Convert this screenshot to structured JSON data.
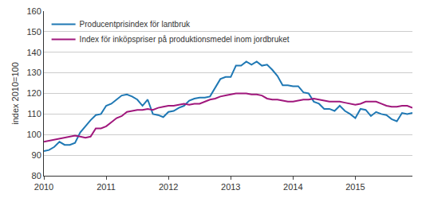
{
  "chart_data": {
    "type": "line",
    "y_label": "index 2010=100",
    "categories": [
      "2010",
      null,
      null,
      null,
      null,
      null,
      null,
      null,
      null,
      null,
      null,
      null,
      "2011",
      null,
      null,
      null,
      null,
      null,
      null,
      null,
      null,
      null,
      null,
      null,
      "2012",
      null,
      null,
      null,
      null,
      null,
      null,
      null,
      null,
      null,
      null,
      null,
      "2013",
      null,
      null,
      null,
      null,
      null,
      null,
      null,
      null,
      null,
      null,
      null,
      "2014",
      null,
      null,
      null,
      null,
      null,
      null,
      null,
      null,
      null,
      null,
      null,
      "2015",
      null,
      null,
      null,
      null,
      null,
      null,
      null,
      null,
      null,
      null,
      null
    ],
    "series": [
      {
        "name": "Producentprisindex för lantbruk",
        "color": "#1f78b4",
        "values": [
          92,
          92.5,
          94,
          96.5,
          95,
          95,
          96,
          101,
          104,
          107,
          109.5,
          110,
          114,
          115,
          117,
          119,
          119.5,
          118.5,
          117,
          114,
          117,
          110,
          109.5,
          108.5,
          111,
          111.5,
          113,
          114,
          116.5,
          117.5,
          118,
          118,
          118.5,
          123,
          127,
          128,
          128,
          133.5,
          133.5,
          135.5,
          134,
          135.5,
          133.5,
          134,
          131.5,
          128.5,
          124,
          124,
          123.5,
          123.5,
          120.5,
          120,
          116,
          115,
          112.5,
          112.5,
          111.5,
          114,
          111.5,
          110,
          108,
          112.5,
          112,
          109,
          111,
          110,
          109.5,
          107.5,
          106.5,
          110.5,
          110,
          110.5
        ]
      },
      {
        "name": "Index för inköpspriser på produktionsmedel inom jordbruket",
        "color": "#a0177c",
        "values": [
          96.5,
          97,
          97.5,
          98,
          98.5,
          99,
          99.5,
          99,
          98.5,
          99,
          103,
          103,
          104,
          106,
          108,
          109,
          111,
          111.5,
          112,
          112,
          112.5,
          112,
          113,
          113.5,
          114,
          114,
          114.5,
          115,
          114.5,
          115,
          115,
          116,
          117,
          117.5,
          118.5,
          119,
          119.5,
          120,
          120,
          120,
          119.5,
          119.5,
          119,
          117.5,
          117,
          117,
          116.5,
          116,
          116,
          116.5,
          117,
          117,
          117.5,
          117,
          116.5,
          116,
          116,
          116,
          115.5,
          115,
          114.5,
          115,
          116,
          116,
          116,
          115,
          114,
          113.5,
          113.5,
          114,
          114,
          113
        ]
      }
    ],
    "ylim": [
      80,
      160
    ],
    "yticks": [
      80,
      90,
      100,
      110,
      120,
      130,
      140,
      150,
      160
    ],
    "grid": true,
    "legend": "top left"
  }
}
